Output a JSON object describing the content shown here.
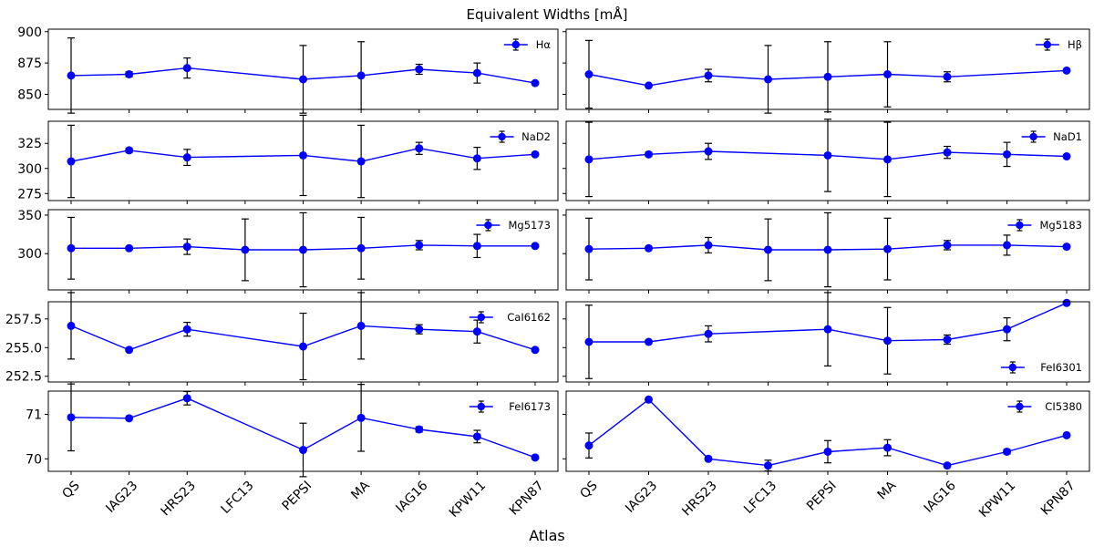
{
  "chart_data": {
    "type": "scatter",
    "title": "Equivalent Widths [mÅ]",
    "xlabel": "Atlas",
    "ylabel": "",
    "categories": [
      "QS",
      "IAG23",
      "HRS23",
      "LFC13",
      "PEPSI",
      "MA",
      "IAG16",
      "KPW11",
      "KPN87"
    ],
    "series_color": "#0000ff",
    "errorbar_color": "#000000",
    "panels": [
      {
        "name": "Hα",
        "legend_loc": "top-right",
        "ylim": [
          838,
          902
        ],
        "yticks": [
          850,
          875,
          900
        ],
        "ytick_labels": [
          "850",
          "875",
          "900"
        ],
        "points": [
          {
            "x": "QS",
            "y": 865,
            "err": 30
          },
          {
            "x": "IAG23",
            "y": 866,
            "err": 2
          },
          {
            "x": "HRS23",
            "y": 871,
            "err": 8
          },
          {
            "x": "PEPSI",
            "y": 862,
            "err": 27
          },
          {
            "x": "MA",
            "y": 865,
            "err": 27
          },
          {
            "x": "IAG16",
            "y": 870,
            "err": 4
          },
          {
            "x": "KPW11",
            "y": 867,
            "err": 8
          },
          {
            "x": "KPN87",
            "y": 859,
            "err": 0
          }
        ]
      },
      {
        "name": "Hβ",
        "legend_loc": "top-right",
        "ylim": [
          838,
          902
        ],
        "yticks": [
          850,
          875,
          900
        ],
        "ytick_labels": [
          "",
          "",
          ""
        ],
        "points": [
          {
            "x": "QS",
            "y": 866,
            "err": 27
          },
          {
            "x": "IAG23",
            "y": 857,
            "err": 0
          },
          {
            "x": "HRS23",
            "y": 865,
            "err": 5
          },
          {
            "x": "LFC13",
            "y": 862,
            "err": 27
          },
          {
            "x": "PEPSI",
            "y": 864,
            "err": 28
          },
          {
            "x": "MA",
            "y": 866,
            "err": 26
          },
          {
            "x": "IAG16",
            "y": 864,
            "err": 4
          },
          {
            "x": "KPN87",
            "y": 869,
            "err": 0
          }
        ]
      },
      {
        "name": "NaD2",
        "legend_loc": "top-right",
        "ylim": [
          268,
          347
        ],
        "yticks": [
          275,
          300,
          325
        ],
        "ytick_labels": [
          "275",
          "300",
          "325"
        ],
        "points": [
          {
            "x": "QS",
            "y": 307,
            "err": 36
          },
          {
            "x": "IAG23",
            "y": 318,
            "err": 2
          },
          {
            "x": "HRS23",
            "y": 311,
            "err": 8
          },
          {
            "x": "PEPSI",
            "y": 313,
            "err": 40
          },
          {
            "x": "MA",
            "y": 307,
            "err": 36
          },
          {
            "x": "IAG16",
            "y": 320,
            "err": 6
          },
          {
            "x": "KPW11",
            "y": 310,
            "err": 11
          },
          {
            "x": "KPN87",
            "y": 314,
            "err": 0
          }
        ]
      },
      {
        "name": "NaD1",
        "legend_loc": "top-right",
        "ylim": [
          268,
          347
        ],
        "yticks": [
          275,
          300,
          325
        ],
        "ytick_labels": [
          "",
          "",
          ""
        ],
        "points": [
          {
            "x": "QS",
            "y": 309,
            "err": 37
          },
          {
            "x": "IAG23",
            "y": 314,
            "err": 2
          },
          {
            "x": "HRS23",
            "y": 317,
            "err": 8
          },
          {
            "x": "PEPSI",
            "y": 313,
            "err": 36
          },
          {
            "x": "MA",
            "y": 309,
            "err": 37
          },
          {
            "x": "IAG16",
            "y": 316,
            "err": 6
          },
          {
            "x": "KPW11",
            "y": 314,
            "err": 12
          },
          {
            "x": "KPN87",
            "y": 312,
            "err": 0
          }
        ]
      },
      {
        "name": "Mg5173",
        "legend_loc": "top-right",
        "ylim": [
          253,
          357
        ],
        "yticks": [
          300,
          350
        ],
        "ytick_labels": [
          "300",
          "350"
        ],
        "points": [
          {
            "x": "QS",
            "y": 307,
            "err": 40
          },
          {
            "x": "IAG23",
            "y": 307,
            "err": 2
          },
          {
            "x": "HRS23",
            "y": 309,
            "err": 10
          },
          {
            "x": "LFC13",
            "y": 305,
            "err": 40
          },
          {
            "x": "PEPSI",
            "y": 305,
            "err": 48
          },
          {
            "x": "MA",
            "y": 307,
            "err": 40
          },
          {
            "x": "IAG16",
            "y": 311,
            "err": 6
          },
          {
            "x": "KPW11",
            "y": 310,
            "err": 15
          },
          {
            "x": "KPN87",
            "y": 310,
            "err": 0
          }
        ]
      },
      {
        "name": "Mg5183",
        "legend_loc": "top-right",
        "ylim": [
          253,
          357
        ],
        "yticks": [
          300,
          350
        ],
        "ytick_labels": [
          "",
          ""
        ],
        "points": [
          {
            "x": "QS",
            "y": 306,
            "err": 40
          },
          {
            "x": "IAG23",
            "y": 307,
            "err": 2
          },
          {
            "x": "HRS23",
            "y": 311,
            "err": 10
          },
          {
            "x": "LFC13",
            "y": 305,
            "err": 40
          },
          {
            "x": "PEPSI",
            "y": 305,
            "err": 48
          },
          {
            "x": "MA",
            "y": 306,
            "err": 40
          },
          {
            "x": "IAG16",
            "y": 311,
            "err": 6
          },
          {
            "x": "KPW11",
            "y": 311,
            "err": 13
          },
          {
            "x": "KPN87",
            "y": 309,
            "err": 0
          }
        ]
      },
      {
        "name": "CaI6162",
        "legend_loc": "top-right",
        "ylim": [
          252.0,
          259.0
        ],
        "yticks": [
          252.5,
          255.0,
          257.5
        ],
        "ytick_labels": [
          "252.5",
          "255.0",
          "257.5"
        ],
        "points": [
          {
            "x": "QS",
            "y": 256.9,
            "err": 2.9
          },
          {
            "x": "IAG23",
            "y": 254.8,
            "err": 0
          },
          {
            "x": "HRS23",
            "y": 256.6,
            "err": 0.6
          },
          {
            "x": "PEPSI",
            "y": 255.1,
            "err": 2.9
          },
          {
            "x": "MA",
            "y": 256.9,
            "err": 2.9
          },
          {
            "x": "IAG16",
            "y": 256.6,
            "err": 0.4
          },
          {
            "x": "KPW11",
            "y": 256.4,
            "err": 1.0
          },
          {
            "x": "KPN87",
            "y": 254.8,
            "err": 0
          }
        ]
      },
      {
        "name": "FeI6301",
        "legend_loc": "bottom-right",
        "ylim": [
          252.0,
          259.0
        ],
        "yticks": [
          252.5,
          255.0,
          257.5
        ],
        "ytick_labels": [
          "",
          "",
          ""
        ],
        "points": [
          {
            "x": "QS",
            "y": 255.5,
            "err": 3.2
          },
          {
            "x": "IAG23",
            "y": 255.5,
            "err": 0.15
          },
          {
            "x": "HRS23",
            "y": 256.2,
            "err": 0.7
          },
          {
            "x": "PEPSI",
            "y": 256.6,
            "err": 3.2
          },
          {
            "x": "MA",
            "y": 255.6,
            "err": 2.9
          },
          {
            "x": "IAG16",
            "y": 255.7,
            "err": 0.4
          },
          {
            "x": "KPW11",
            "y": 256.6,
            "err": 1.0
          },
          {
            "x": "KPN87",
            "y": 258.9,
            "err": 0
          }
        ]
      },
      {
        "name": "FeI6173",
        "legend_loc": "top-right",
        "ylim": [
          69.72,
          71.52
        ],
        "yticks": [
          70,
          71
        ],
        "ytick_labels": [
          "70",
          "71"
        ],
        "points": [
          {
            "x": "QS",
            "y": 70.93,
            "err": 0.75
          },
          {
            "x": "IAG23",
            "y": 70.91,
            "err": 0
          },
          {
            "x": "HRS23",
            "y": 71.36,
            "err": 0.15
          },
          {
            "x": "PEPSI",
            "y": 70.2,
            "err": 0.6
          },
          {
            "x": "MA",
            "y": 70.92,
            "err": 0.75
          },
          {
            "x": "IAG16",
            "y": 70.66,
            "err": 0.06
          },
          {
            "x": "KPW11",
            "y": 70.5,
            "err": 0.14
          },
          {
            "x": "KPN87",
            "y": 70.03,
            "err": 0
          }
        ]
      },
      {
        "name": "CI5380",
        "legend_loc": "top-right",
        "ylim": [
          69.72,
          71.52
        ],
        "yticks": [
          70,
          71
        ],
        "ytick_labels": [
          "",
          ""
        ],
        "points": [
          {
            "x": "QS",
            "y": 70.3,
            "err": 0.28
          },
          {
            "x": "IAG23",
            "y": 71.33,
            "err": 0
          },
          {
            "x": "HRS23",
            "y": 70.0,
            "err": 0
          },
          {
            "x": "LFC13",
            "y": 69.85,
            "err": 0.12
          },
          {
            "x": "PEPSI",
            "y": 70.16,
            "err": 0.25
          },
          {
            "x": "MA",
            "y": 70.25,
            "err": 0.18
          },
          {
            "x": "IAG16",
            "y": 69.85,
            "err": 0
          },
          {
            "x": "KPW11",
            "y": 70.16,
            "err": 0.05
          },
          {
            "x": "KPN87",
            "y": 70.53,
            "err": 0
          }
        ]
      }
    ]
  }
}
